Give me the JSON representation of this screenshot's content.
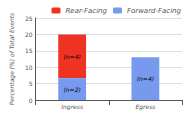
{
  "chart_data": {
    "type": "bar",
    "stacked": true,
    "categories": [
      "Ingress",
      "Egress"
    ],
    "series": [
      {
        "name": "Forward-Facing",
        "color": "#7799EE",
        "values": [
          6.67,
          13.0
        ],
        "labels": [
          "(n=2)",
          "(n=4)"
        ]
      },
      {
        "name": "Rear-Facing",
        "color": "#EE3322",
        "values": [
          13.33,
          0.0
        ],
        "labels": [
          "(n=4)",
          null
        ]
      }
    ],
    "ylabel": "Percentage (%) of Total Events",
    "ylim": [
      0,
      25
    ],
    "yticks": [
      0,
      5,
      10,
      15,
      20,
      25
    ],
    "grid": true,
    "legend": "upper right"
  }
}
